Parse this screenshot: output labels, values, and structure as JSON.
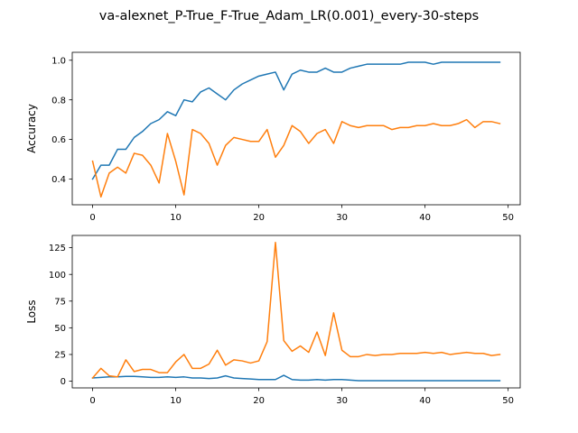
{
  "figure": {
    "suptitle": "va-alexnet_P-True_F-True_Adam_LR(0.001)_every-30-steps"
  },
  "colors": {
    "series_1": "#1f77b4",
    "series_2": "#ff7f0e"
  },
  "chart_data": [
    {
      "type": "line",
      "title": "",
      "xlabel": "",
      "ylabel": "Accuracy",
      "xlim": [
        -2.45,
        51.45
      ],
      "ylim": [
        0.27,
        1.04
      ],
      "xticks": [
        0,
        10,
        20,
        30,
        40,
        50
      ],
      "yticks": [
        0.4,
        0.6,
        0.8,
        1.0
      ],
      "ytick_labels": [
        "0.4",
        "0.6",
        "0.8",
        "1.0"
      ],
      "grid": false,
      "x": [
        0,
        1,
        2,
        3,
        4,
        5,
        6,
        7,
        8,
        9,
        10,
        11,
        12,
        13,
        14,
        15,
        16,
        17,
        18,
        19,
        20,
        21,
        22,
        23,
        24,
        25,
        26,
        27,
        28,
        29,
        30,
        31,
        32,
        33,
        34,
        35,
        36,
        37,
        38,
        39,
        40,
        41,
        42,
        43,
        44,
        45,
        46,
        47,
        48,
        49
      ],
      "series": [
        {
          "color": "#1f77b4",
          "values": [
            0.4,
            0.47,
            0.47,
            0.55,
            0.55,
            0.61,
            0.64,
            0.68,
            0.7,
            0.74,
            0.72,
            0.8,
            0.79,
            0.84,
            0.86,
            0.83,
            0.8,
            0.85,
            0.88,
            0.9,
            0.92,
            0.93,
            0.94,
            0.85,
            0.93,
            0.95,
            0.94,
            0.94,
            0.96,
            0.94,
            0.94,
            0.96,
            0.97,
            0.98,
            0.98,
            0.98,
            0.98,
            0.98,
            0.99,
            0.99,
            0.99,
            0.98,
            0.99,
            0.99,
            0.99,
            0.99,
            0.99,
            0.99,
            0.99,
            0.99
          ]
        },
        {
          "color": "#ff7f0e",
          "values": [
            0.49,
            0.31,
            0.43,
            0.46,
            0.43,
            0.53,
            0.52,
            0.47,
            0.38,
            0.63,
            0.49,
            0.32,
            0.65,
            0.63,
            0.58,
            0.47,
            0.57,
            0.61,
            0.6,
            0.59,
            0.59,
            0.65,
            0.51,
            0.57,
            0.67,
            0.64,
            0.58,
            0.63,
            0.65,
            0.58,
            0.69,
            0.67,
            0.66,
            0.67,
            0.67,
            0.67,
            0.65,
            0.66,
            0.66,
            0.67,
            0.67,
            0.68,
            0.67,
            0.67,
            0.68,
            0.7,
            0.66,
            0.69,
            0.69,
            0.68
          ]
        }
      ]
    },
    {
      "type": "line",
      "title": "",
      "xlabel": "",
      "ylabel": "Loss",
      "xlim": [
        -2.45,
        51.45
      ],
      "ylim": [
        -6.3,
        136.5
      ],
      "xticks": [
        0,
        10,
        20,
        30,
        40,
        50
      ],
      "yticks": [
        0,
        25,
        50,
        75,
        100,
        125
      ],
      "ytick_labels": [
        "0",
        "25",
        "50",
        "75",
        "100",
        "125"
      ],
      "grid": false,
      "x": [
        0,
        1,
        2,
        3,
        4,
        5,
        6,
        7,
        8,
        9,
        10,
        11,
        12,
        13,
        14,
        15,
        16,
        17,
        18,
        19,
        20,
        21,
        22,
        23,
        24,
        25,
        26,
        27,
        28,
        29,
        30,
        31,
        32,
        33,
        34,
        35,
        36,
        37,
        38,
        39,
        40,
        41,
        42,
        43,
        44,
        45,
        46,
        47,
        48,
        49
      ],
      "series": [
        {
          "color": "#1f77b4",
          "values": [
            3.0,
            3.5,
            4.0,
            4.0,
            4.5,
            4.5,
            4.0,
            3.5,
            3.5,
            4.0,
            3.5,
            4.0,
            3.0,
            3.0,
            2.5,
            3.0,
            5.0,
            3.0,
            2.5,
            2.0,
            1.5,
            1.5,
            1.5,
            5.5,
            1.5,
            1.0,
            1.0,
            1.5,
            1.0,
            1.5,
            1.5,
            1.0,
            0.5,
            0.5,
            0.5,
            0.5,
            0.5,
            0.5,
            0.5,
            0.5,
            0.5,
            0.5,
            0.5,
            0.5,
            0.5,
            0.5,
            0.5,
            0.5,
            0.5,
            0.5
          ]
        },
        {
          "color": "#ff7f0e",
          "values": [
            3,
            12,
            5,
            4,
            20,
            9,
            11,
            11,
            8,
            8,
            18,
            25,
            12,
            12,
            16,
            29,
            15,
            20,
            19,
            17,
            19,
            37,
            130,
            38,
            28,
            33,
            27,
            46,
            24,
            64,
            29,
            23,
            23,
            25,
            24,
            25,
            25,
            26,
            26,
            26,
            27,
            26,
            27,
            25,
            26,
            27,
            26,
            26,
            24,
            25
          ]
        }
      ]
    }
  ]
}
